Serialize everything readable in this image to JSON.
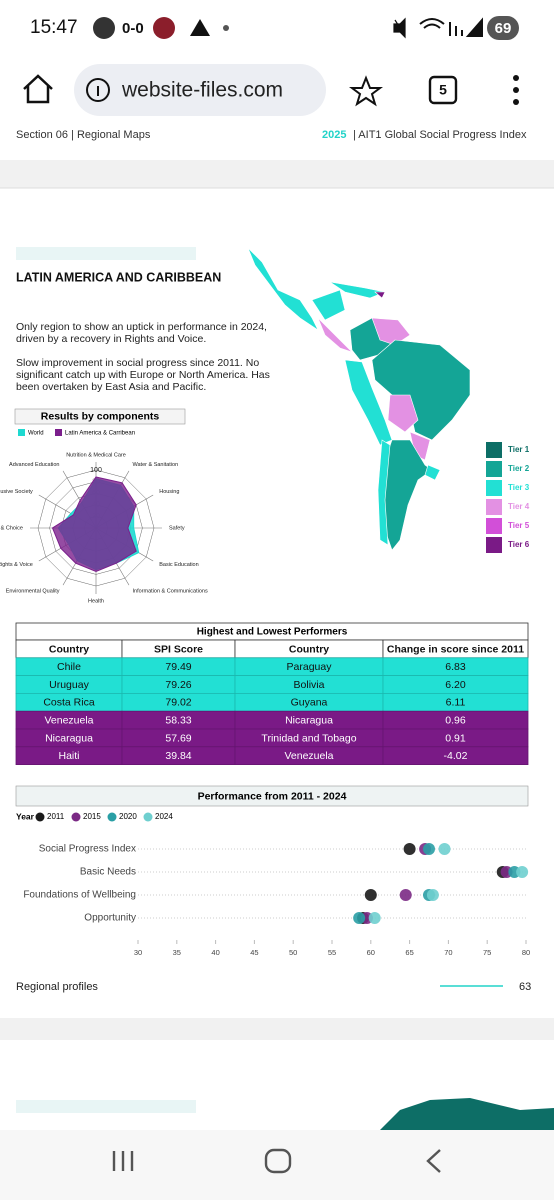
{
  "status_bar": {
    "time": "15:47",
    "score": "0-0",
    "battery": "69"
  },
  "browser": {
    "url": "website-files.com",
    "tab_count": "5"
  },
  "document": {
    "section": "Section 06 | Regional Maps",
    "year": "2025",
    "report": "| AIT1 Global Social Progress Index",
    "region": "LATIN AMERICA AND CARIBBEAN",
    "paragraphs": [
      "Only region to show an uptick in performance in 2024, driven by a recovery in Rights and Voice.",
      "Slow improvement in social progress since 2011.  No significant catch up with Europe or North America. Has been overtaken by East Asia and Pacific."
    ],
    "map_legend": [
      {
        "label": "Tier 1",
        "color": "#0d6e66"
      },
      {
        "label": "Tier 2",
        "color": "#14a596"
      },
      {
        "label": "Tier 3",
        "color": "#22e0d4"
      },
      {
        "label": "Tier 4",
        "color": "#e391e3"
      },
      {
        "label": "Tier 5",
        "color": "#d24fd8"
      },
      {
        "label": "Tier 6",
        "color": "#7a1a86"
      }
    ],
    "table": {
      "title": "Highest and Lowest Performers",
      "header": [
        "Country",
        "SPI Score",
        "Country",
        "Change in score since 2011"
      ],
      "rows": [
        [
          "Chile",
          "79.49",
          "Paraguay",
          "6.83"
        ],
        [
          "Uruguay",
          "79.26",
          "Bolivia",
          "6.20"
        ],
        [
          "Costa Rica",
          "79.02",
          "Guyana",
          "6.11"
        ],
        [
          "Venezuela",
          "58.33",
          "Nicaragua",
          "0.96"
        ],
        [
          "Nicaragua",
          "57.69",
          "Trinidad and Tobago",
          "0.91"
        ],
        [
          "Haiti",
          "39.84",
          "Venezuela",
          "-4.02"
        ]
      ]
    },
    "footer": {
      "label": "Regional profiles",
      "page": "63"
    }
  },
  "chart_data": [
    {
      "type": "radar",
      "title": "Results by components",
      "categories": [
        "Nutrition & Medical Care",
        "Water & Sanitation",
        "Housing",
        "Safety",
        "Basic Education",
        "Information & Communications",
        "Health",
        "Environmental Quality",
        "Rights & Voice",
        "Freedom & Choice",
        "Inclusive Society",
        "Advanced Education"
      ],
      "series": [
        {
          "name": "World",
          "color": "#1ed9d0",
          "values": [
            85,
            85,
            75,
            65,
            85,
            70,
            72,
            65,
            55,
            65,
            50,
            50
          ]
        },
        {
          "name": "Latin America & Carribean",
          "color": "#7b1f8c",
          "values": [
            88,
            90,
            80,
            55,
            80,
            70,
            75,
            70,
            70,
            75,
            45,
            55
          ]
        }
      ],
      "rlim": [
        0,
        100
      ],
      "rticks": [
        0,
        20,
        40,
        60,
        80,
        100
      ]
    },
    {
      "type": "dot",
      "title": "Performance from 2011 - 2024",
      "legend_title": "Year",
      "categories": [
        "Social Progress Index",
        "Basic Needs",
        "Foundations of Wellbeing",
        "Opportunity"
      ],
      "series": [
        {
          "name": "2011",
          "color": "#1a1a1a",
          "values": [
            65,
            77,
            60,
            59
          ]
        },
        {
          "name": "2015",
          "color": "#7b2a85",
          "values": [
            67,
            77.5,
            64.5,
            59.5
          ]
        },
        {
          "name": "2020",
          "color": "#2a9fa5",
          "values": [
            67.5,
            78.5,
            67.5,
            58.5
          ]
        },
        {
          "name": "2024",
          "color": "#6fcfcf",
          "values": [
            69.5,
            79.5,
            68,
            60.5
          ]
        }
      ],
      "xlim": [
        30,
        80
      ],
      "xticks": [
        30,
        35,
        40,
        45,
        50,
        55,
        60,
        65,
        70,
        75,
        80
      ],
      "grid": true
    }
  ]
}
